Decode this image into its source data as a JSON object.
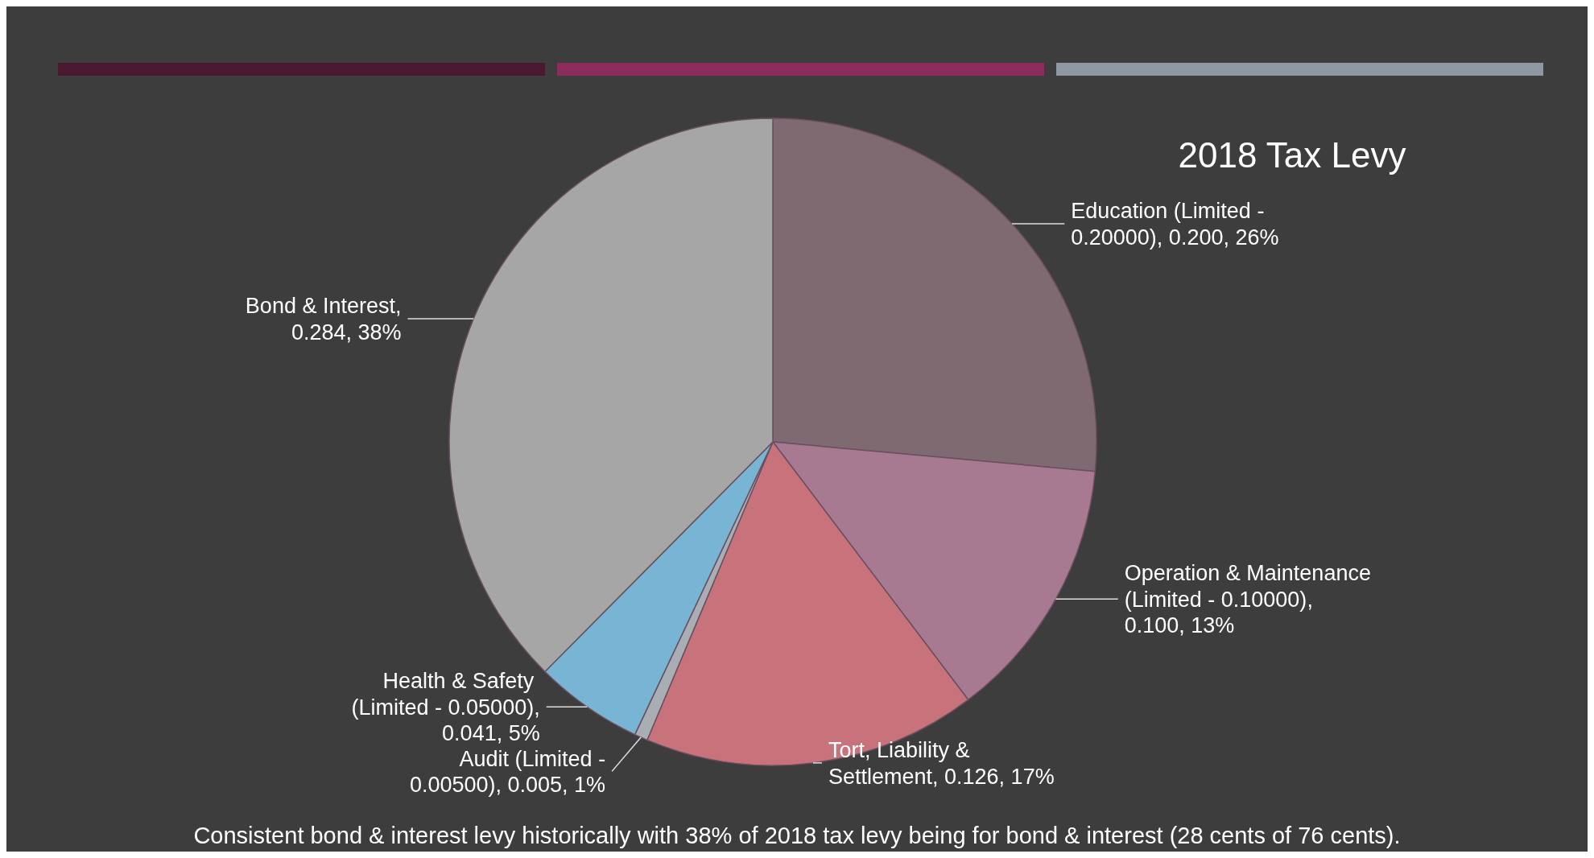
{
  "chart_data": {
    "type": "pie",
    "title": "2018 Tax Levy",
    "categories": [
      "Education (Limited - 0.20000)",
      "Operation & Maintenance (Limited - 0.10000)",
      "Tort, Liability & Settlement",
      "Audit (Limited - 0.00500)",
      "Health & Safety  (Limited - 0.05000)",
      "Bond & Interest"
    ],
    "values": [
      0.2,
      0.1,
      0.126,
      0.005,
      0.041,
      0.284
    ],
    "value_labels": [
      ", 0.200, 26%",
      ", 0.100, 13%",
      ", 0.126, 17%",
      ", 0.005, 1%",
      ", 0.041, 5%",
      ", 0.284, 38%"
    ],
    "legend": false,
    "colors": [
      "#7e6a70",
      "#a87a92",
      "#c8727c",
      "#a8aeb4",
      "#78b4d4",
      "#a6a6a6"
    ],
    "annotations": [
      "Consistent bond & interest levy historically with 38% of 2018 tax levy being for bond & interest (28 cents of 76 cents)."
    ]
  }
}
